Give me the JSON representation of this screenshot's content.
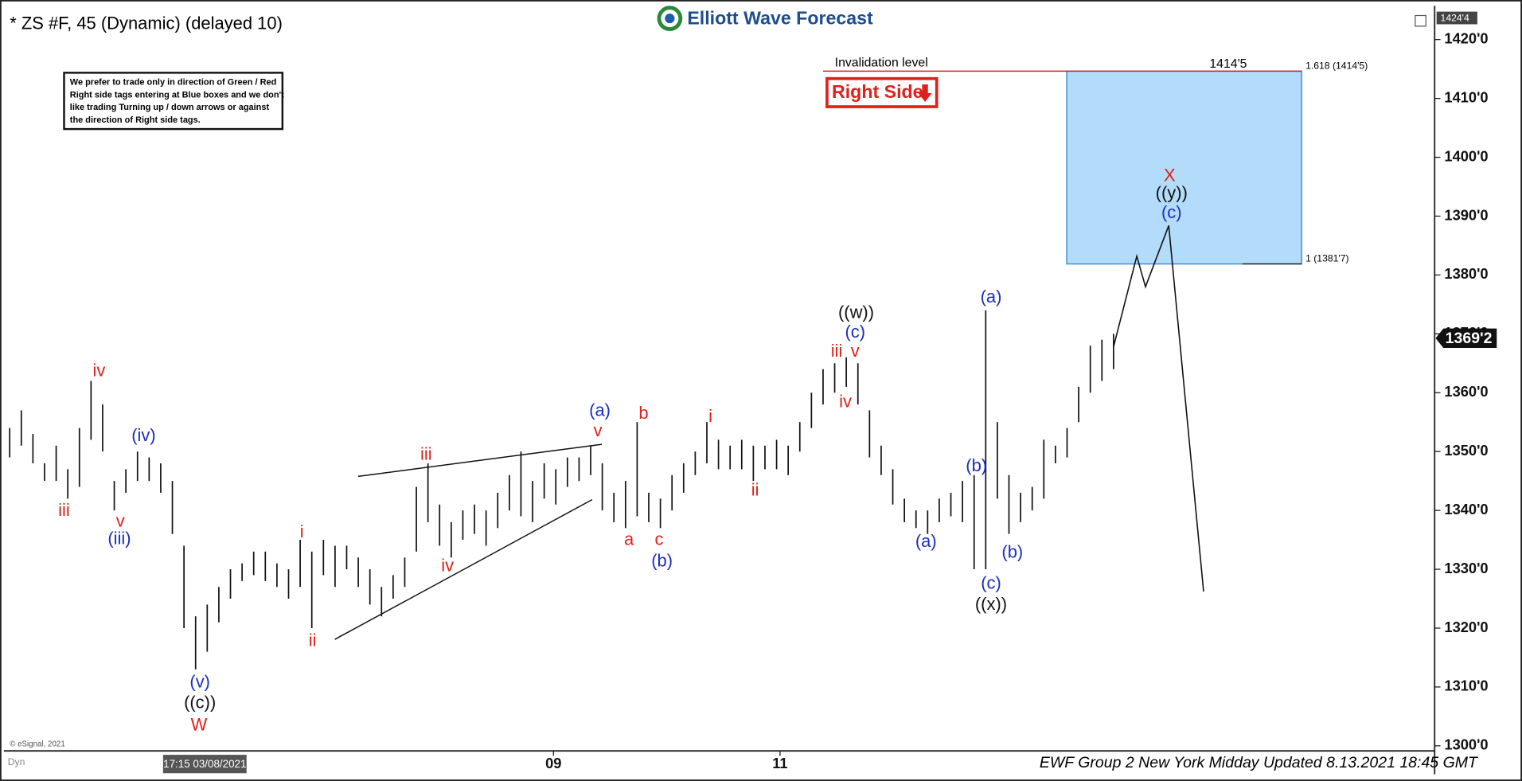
{
  "chart_data": {
    "type": "ohlc",
    "title": "* ZS #F, 45 (Dynamic) (delayed 10)",
    "logo": "Elliott Wave Forecast",
    "note": [
      "We prefer to trade only in direction of Green / Red",
      "Right side tags entering at Blue boxes and we don't",
      "like trading Turning up / down arrows or against",
      "the direction of Right side tags."
    ],
    "right_side": "Right Side",
    "invalidation": {
      "text": "Invalidation level",
      "value": 1414.625,
      "label": "1414'5"
    },
    "target_box": {
      "low": 1381.875,
      "high": 1414.625,
      "low_label": "1 (1381'7)",
      "high_label": "1.618 (1414'5)"
    },
    "current_price": {
      "value": 1369.25,
      "label": "1369'2"
    },
    "top_price": {
      "value": 1424.5,
      "label": "1424'4"
    },
    "ylim": [
      1299.3,
      1425.4
    ],
    "yticks": [
      {
        "value": 1300,
        "label": "1300'0"
      },
      {
        "value": 1310,
        "label": "1310'0"
      },
      {
        "value": 1320,
        "label": "1320'0"
      },
      {
        "value": 1330,
        "label": "1330'0"
      },
      {
        "value": 1340,
        "label": "1340'0"
      },
      {
        "value": 1350,
        "label": "1350'0"
      },
      {
        "value": 1360,
        "label": "1360'0"
      },
      {
        "value": 1370,
        "label": "1370'0"
      },
      {
        "value": 1380,
        "label": "1380'0"
      },
      {
        "value": 1390,
        "label": "1390'0"
      },
      {
        "value": 1400,
        "label": "1400'0"
      },
      {
        "value": 1410,
        "label": "1410'0"
      },
      {
        "value": 1420,
        "label": "1420'0"
      }
    ],
    "xlim": [
      -0.5,
      122.3
    ],
    "xticks": [
      {
        "value": 46.8,
        "label": "09"
      },
      {
        "value": 66.3,
        "label": "11"
      }
    ],
    "start_label": "17:15 03/08/2021",
    "high": [
      1354,
      1357,
      1353,
      1348,
      1351,
      1347,
      1354,
      1362,
      1358,
      1345,
      1347,
      1350,
      1349,
      1348,
      1345,
      1334,
      1322,
      1324,
      1327,
      1330,
      1331,
      1333,
      1333,
      1331,
      1330,
      1335,
      1333,
      1335,
      1334,
      1334,
      1332,
      1330,
      1327,
      1329,
      1332,
      1344,
      1348,
      1341,
      1338,
      1340,
      1341,
      1340,
      1343,
      1346,
      1350,
      1345,
      1348,
      1347,
      1349,
      1349,
      1351,
      1348,
      1343,
      1345,
      1355,
      1343,
      1342,
      1346,
      1348,
      1350,
      1355,
      1352,
      1351,
      1352,
      1351,
      1351,
      1352,
      1351,
      1355,
      1360,
      1364,
      1365,
      1366,
      1365,
      1357,
      1351,
      1347,
      1342,
      1340,
      1340,
      1342,
      1343,
      1345,
      1346,
      1374,
      1355,
      1346,
      1343,
      1344,
      1352,
      1351,
      1354,
      1361,
      1368,
      1369,
      1370
    ],
    "low": [
      1349,
      1351,
      1348,
      1345,
      1345,
      1342,
      1344,
      1352,
      1350,
      1340,
      1343,
      1345,
      1345,
      1343,
      1336,
      1320,
      1313,
      1316,
      1321,
      1325,
      1328,
      1329,
      1328,
      1327,
      1325,
      1327,
      1320,
      1329,
      1327,
      1330,
      1327,
      1324,
      1322,
      1325,
      1327,
      1333,
      1338,
      1334,
      1332,
      1335,
      1336,
      1334,
      1337,
      1340,
      1339,
      1338,
      1342,
      1341,
      1344,
      1345,
      1346,
      1340,
      1338,
      1337,
      1339,
      1338,
      1337,
      1340,
      1343,
      1346,
      1348,
      1347,
      1347,
      1347,
      1345,
      1347,
      1347,
      1346,
      1350,
      1354,
      1358,
      1360,
      1361,
      1358,
      1349,
      1346,
      1341,
      1338,
      1337,
      1336,
      1338,
      1339,
      1338,
      1330,
      1330,
      1342,
      1336,
      1338,
      1340,
      1342,
      1348,
      1349,
      1355,
      1360,
      1362,
      1364
    ],
    "color": "#111111",
    "projection": {
      "x": [
        95,
        97,
        97.75,
        99.75,
        102.75
      ],
      "values": [
        1367.8,
        1383.2,
        1378,
        1388.4,
        1326.2
      ],
      "color": "#111111"
    },
    "wave_labels": [
      "iv",
      "iii",
      "v",
      "(iii)",
      "(iv)",
      "(v)",
      "((c))",
      "W",
      "i",
      "ii",
      "iii",
      "iv",
      "(a)",
      "v",
      "b",
      "a",
      "c",
      "(b)",
      "i",
      "ii",
      "iii",
      "v",
      "iv",
      "(c)",
      "((w))",
      "(a)",
      "(b)",
      "(c)",
      "((x))",
      "(a)",
      "(b)",
      "X",
      "((y))",
      "(c)"
    ],
    "credit": "© eSignal, 2021",
    "mode": "Dyn",
    "footer": "EWF Group 2 New York Midday Updated 8.13.2021 18:45 GMT"
  }
}
